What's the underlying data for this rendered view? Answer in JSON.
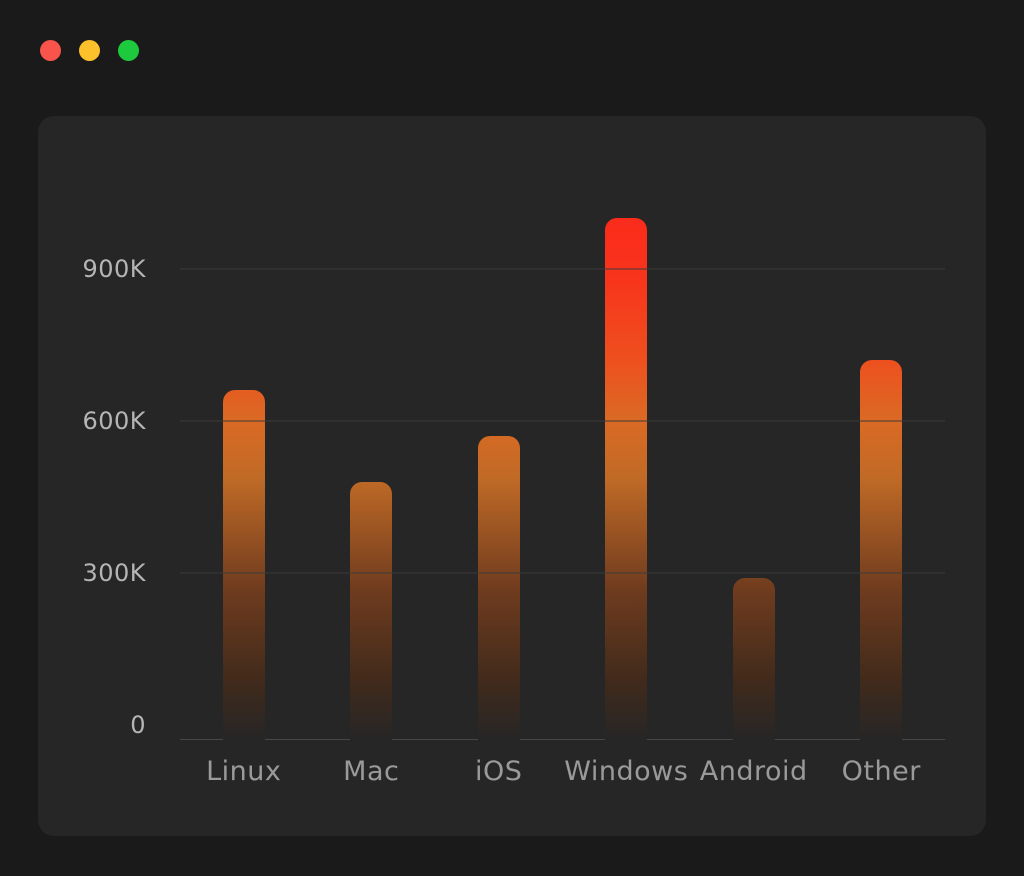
{
  "window": {
    "controls": [
      {
        "name": "close",
        "color": "#f9544c"
      },
      {
        "name": "minimize",
        "color": "#fcc12b"
      },
      {
        "name": "zoom",
        "color": "#1dc93d"
      }
    ]
  },
  "colors": {
    "window_bg": "#1a1a1a",
    "card_bg": "#262626",
    "grid": "#3b3b3b",
    "axis": "#474747",
    "tick_text": "#b5b5b5",
    "category_text": "#9a9a9a"
  },
  "chart_data": {
    "type": "bar",
    "title": "",
    "xlabel": "",
    "ylabel": "",
    "categories": [
      "Linux",
      "Mac",
      "iOS",
      "Windows",
      "Android",
      "Other"
    ],
    "values": [
      690000,
      510000,
      600000,
      1030000,
      320000,
      750000
    ],
    "ylim": [
      0,
      1125000
    ],
    "y_ticks": [
      {
        "label": "900K",
        "value": 900000
      },
      {
        "label": "600K",
        "value": 600000
      },
      {
        "label": "300K",
        "value": 300000
      },
      {
        "label": "0",
        "value": 0
      }
    ],
    "grid": "horizontal",
    "legend": "none",
    "bar_gradient": [
      {
        "color": "#262626",
        "pos": 0
      },
      {
        "color": "#402a1b",
        "pos": 10
      },
      {
        "color": "#6e3b1e",
        "pos": 26
      },
      {
        "color": "#c06a26",
        "pos": 46
      },
      {
        "color": "#da6a24",
        "pos": 56
      },
      {
        "color": "#ee4f1e",
        "pos": 67
      },
      {
        "color": "#f8341c",
        "pos": 81
      },
      {
        "color": "#fd241a",
        "pos": 100
      }
    ]
  }
}
